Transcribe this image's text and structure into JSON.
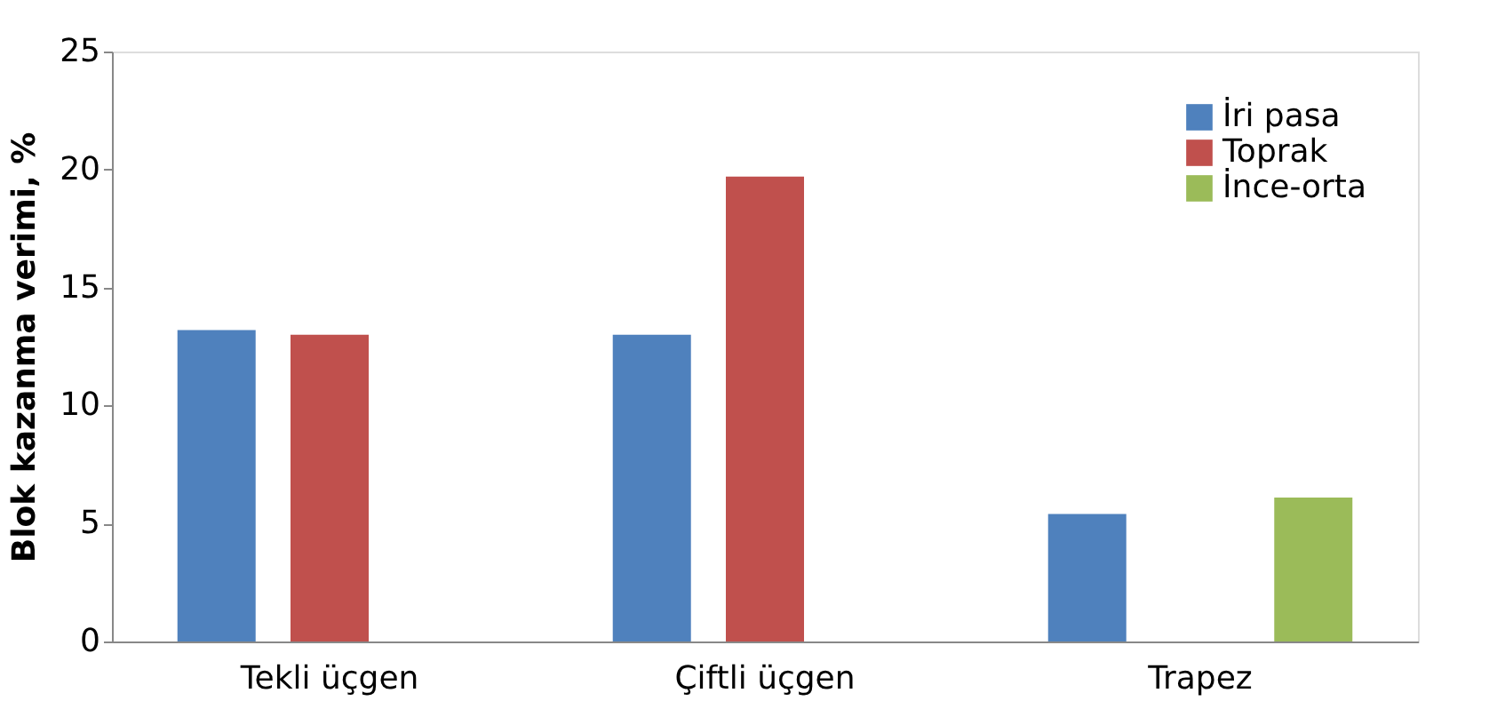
{
  "chart_data": {
    "type": "bar",
    "ylabel": "Blok kazanma verimi, %",
    "categories": [
      "Tekli üçgen",
      "Çiftli üçgen",
      "Trapez"
    ],
    "series": [
      {
        "name": "İri pasa",
        "color": "#4f81bd",
        "values": [
          13.2,
          13.0,
          5.4
        ]
      },
      {
        "name": "Toprak",
        "color": "#c0504d",
        "values": [
          13.0,
          19.7,
          null
        ]
      },
      {
        "name": "İnce-orta",
        "color": "#9bbb59",
        "values": [
          null,
          null,
          6.1
        ]
      }
    ],
    "ylim": [
      0,
      25
    ],
    "yticks": [
      0,
      5,
      10,
      15,
      20,
      25
    ],
    "grid": false,
    "legend": "top right"
  }
}
